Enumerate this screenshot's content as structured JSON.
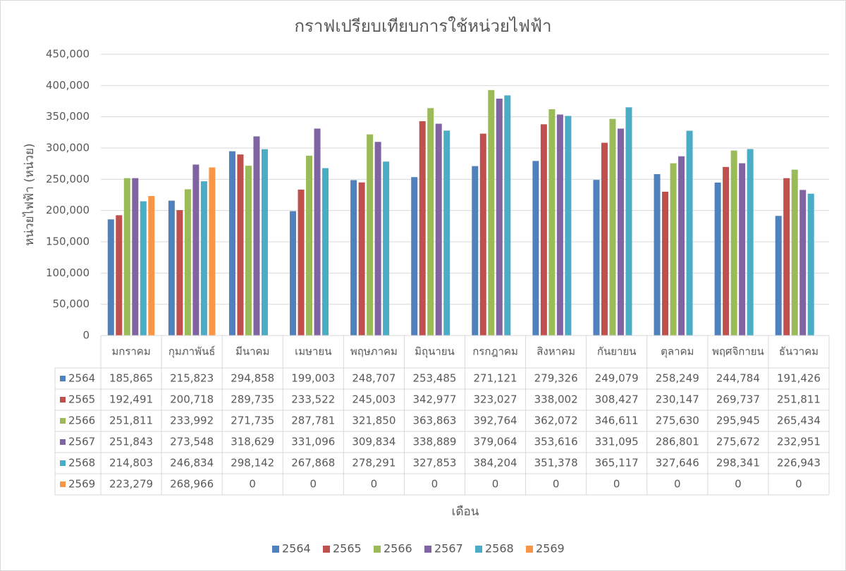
{
  "chart_data": {
    "type": "bar",
    "title": "กราฟเปรียบเทียบการใช้หน่วยไฟฟ้า",
    "x_label": "เดือน",
    "y_label": "หน่วยไฟฟ้า (หน่วย)",
    "categories": [
      "มกราคม",
      "กุมภาพันธ์",
      "มีนาคม",
      "เมษายน",
      "พฤษภาคม",
      "มิถุนายน",
      "กรกฎาคม",
      "สิงหาคม",
      "กันยายน",
      "ตุลาคม",
      "พฤศจิกายน",
      "ธันวาคม"
    ],
    "series": [
      {
        "name": "2564",
        "color": "#4f81bd",
        "values": [
          185865,
          215823,
          294858,
          199003,
          248707,
          253485,
          271121,
          279326,
          249079,
          258249,
          244784,
          191426
        ],
        "value_labels": [
          "185,865",
          "215,823",
          "294,858",
          "199,003",
          "248,707",
          "253,485",
          "271,121",
          "279,326",
          "249,079",
          "258,249",
          "244,784",
          "191,426"
        ]
      },
      {
        "name": "2565",
        "color": "#c0504d",
        "values": [
          192491,
          200718,
          289735,
          233522,
          245003,
          342977,
          323027,
          338002,
          308427,
          230147,
          269737,
          251811
        ],
        "value_labels": [
          "192,491",
          "200,718",
          "289,735",
          "233,522",
          "245,003",
          "342,977",
          "323,027",
          "338,002",
          "308,427",
          "230,147",
          "269,737",
          "251,811"
        ]
      },
      {
        "name": "2566",
        "color": "#9bbb59",
        "values": [
          251811,
          233992,
          271735,
          287781,
          321850,
          363863,
          392764,
          362072,
          346611,
          275630,
          295945,
          265434
        ],
        "value_labels": [
          "251,811",
          "233,992",
          "271,735",
          "287,781",
          "321,850",
          "363,863",
          "392,764",
          "362,072",
          "346,611",
          "275,630",
          "295,945",
          "265,434"
        ]
      },
      {
        "name": "2567",
        "color": "#8064a2",
        "values": [
          251843,
          273548,
          318629,
          331096,
          309834,
          338889,
          379064,
          353616,
          331095,
          286801,
          275672,
          232951
        ],
        "value_labels": [
          "251,843",
          "273,548",
          "318,629",
          "331,096",
          "309,834",
          "338,889",
          "379,064",
          "353,616",
          "331,095",
          "286,801",
          "275,672",
          "232,951"
        ]
      },
      {
        "name": "2568",
        "color": "#4bacc6",
        "values": [
          214803,
          246834,
          298142,
          267868,
          278291,
          327853,
          384204,
          351378,
          365117,
          327646,
          298341,
          226943
        ],
        "value_labels": [
          "214,803",
          "246,834",
          "298,142",
          "267,868",
          "278,291",
          "327,853",
          "384,204",
          "351,378",
          "365,117",
          "327,646",
          "298,341",
          "226,943"
        ]
      },
      {
        "name": "2569",
        "color": "#f79646",
        "values": [
          223279,
          268966,
          0,
          0,
          0,
          0,
          0,
          0,
          0,
          0,
          0,
          0
        ],
        "value_labels": [
          "223,279",
          "268,966",
          "0",
          "0",
          "0",
          "0",
          "0",
          "0",
          "0",
          "0",
          "0",
          "0"
        ]
      }
    ],
    "ylim": [
      0,
      450000
    ],
    "yticks": [
      0,
      {
        "value": 50000,
        "label": "50,000"
      },
      {
        "value": 100000,
        "label": "100,000"
      },
      {
        "value": 150000,
        "label": "150,000"
      },
      {
        "value": 200000,
        "label": "200,000"
      },
      {
        "value": 250000,
        "label": "250,000"
      },
      {
        "value": 300000,
        "label": "300,000"
      },
      {
        "value": 350000,
        "label": "350,000"
      },
      {
        "value": 400000,
        "label": "400,000"
      },
      {
        "value": 450000,
        "label": "450,000"
      }
    ],
    "grid": true,
    "legend": "bottom"
  }
}
